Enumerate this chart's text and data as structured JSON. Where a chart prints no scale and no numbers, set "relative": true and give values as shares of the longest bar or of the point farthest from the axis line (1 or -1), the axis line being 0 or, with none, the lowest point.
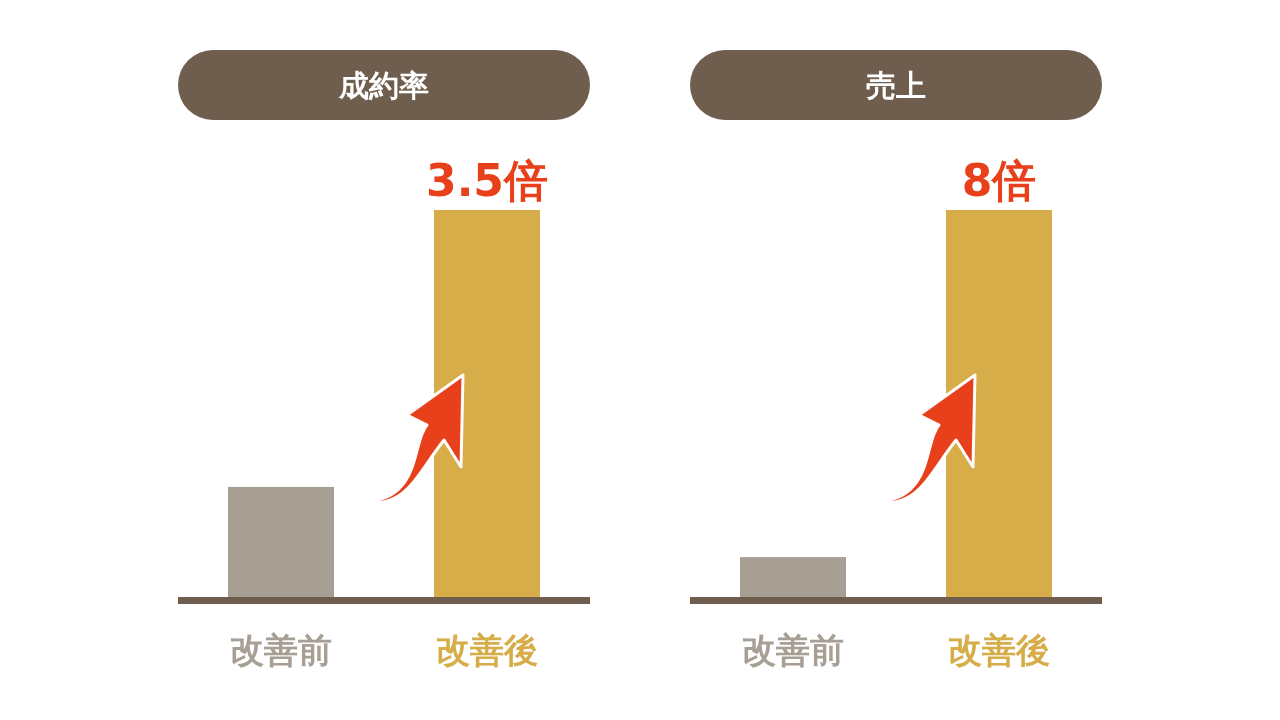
{
  "chart_data": [
    {
      "type": "bar",
      "title": "成約率",
      "relative": true,
      "categories": [
        "改善前",
        "改善後"
      ],
      "values": [
        0.29,
        1
      ],
      "colors": [
        "#a89f94",
        "#d6ad48"
      ],
      "annotations": [
        {
          "text": "3.5倍",
          "x": "改善後",
          "y": 1
        }
      ]
    },
    {
      "type": "bar",
      "title": "売上",
      "relative": true,
      "categories": [
        "改善前",
        "改善後"
      ],
      "values": [
        0.11,
        1
      ],
      "colors": [
        "#a89f94",
        "#d6ad48"
      ],
      "annotations": [
        {
          "text": "8倍",
          "x": "改善後",
          "y": 1
        }
      ]
    }
  ]
}
